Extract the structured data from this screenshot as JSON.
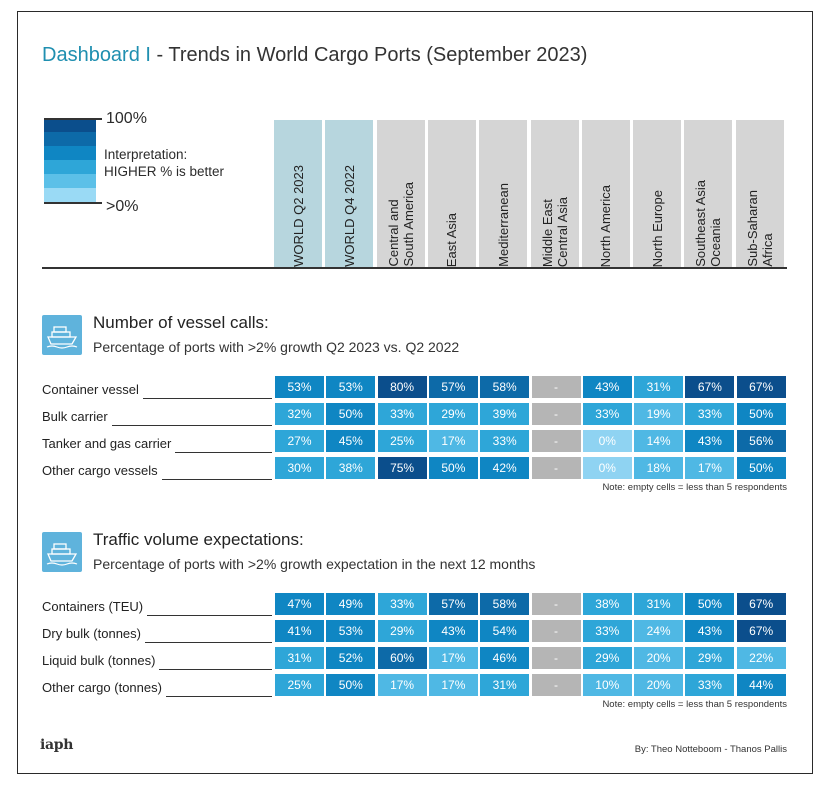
{
  "title": {
    "dashboard": "Dashboard I",
    "rest": " - Trends in World Cargo Ports (September 2023)"
  },
  "legend": {
    "top": "100%",
    "bottom": ">0%",
    "interpretation": "Interpretation:",
    "rule": "HIGHER % is better",
    "colors": [
      "#0b4e8c",
      "#0d6aa8",
      "#0f86c3",
      "#2ea6d8",
      "#5cc0e8",
      "#9adaf5"
    ]
  },
  "columns": [
    {
      "label": "WORLD  Q2  2023",
      "world": true
    },
    {
      "label": "WORLD  Q4  2022",
      "world": true
    },
    {
      "label": "Central and\nSouth America",
      "world": false
    },
    {
      "label": "East Asia",
      "world": false
    },
    {
      "label": "Mediterranean",
      "world": false
    },
    {
      "label": "Middle East\nCentral Asia",
      "world": false
    },
    {
      "label": "North America",
      "world": false
    },
    {
      "label": "North Europe",
      "world": false
    },
    {
      "label": "Southeast Asia\nOceania",
      "world": false
    },
    {
      "label": "Sub-Saharan\nAfrica",
      "world": false
    }
  ],
  "sections": [
    {
      "title": "Number of vessel calls:",
      "subtitle": "Percentage of ports with >2% growth Q2 2023 vs. Q2 2022",
      "note": "Note: empty cells = less than 5 respondents",
      "rows": [
        {
          "label": "Container vessel",
          "values": [
            "53%",
            "53%",
            "80%",
            "57%",
            "58%",
            "-",
            "43%",
            "31%",
            "67%",
            "67%"
          ]
        },
        {
          "label": "Bulk carrier",
          "values": [
            "32%",
            "50%",
            "33%",
            "29%",
            "39%",
            "-",
            "33%",
            "19%",
            "33%",
            "50%"
          ]
        },
        {
          "label": "Tanker and gas carrier",
          "values": [
            "27%",
            "45%",
            "25%",
            "17%",
            "33%",
            "-",
            "0%",
            "14%",
            "43%",
            "56%"
          ]
        },
        {
          "label": "Other cargo vessels",
          "values": [
            "30%",
            "38%",
            "75%",
            "50%",
            "42%",
            "-",
            "0%",
            "18%",
            "17%",
            "50%"
          ]
        }
      ]
    },
    {
      "title": "Traffic volume expectations:",
      "subtitle": "Percentage of ports with >2% growth expectation in the next 12 months",
      "note": "Note: empty cells = less than 5 respondents",
      "rows": [
        {
          "label": "Containers (TEU)",
          "values": [
            "47%",
            "49%",
            "33%",
            "57%",
            "58%",
            "-",
            "38%",
            "31%",
            "50%",
            "67%"
          ]
        },
        {
          "label": "Dry bulk (tonnes)",
          "values": [
            "41%",
            "53%",
            "29%",
            "43%",
            "54%",
            "-",
            "33%",
            "24%",
            "43%",
            "67%"
          ]
        },
        {
          "label": "Liquid bulk (tonnes)",
          "values": [
            "31%",
            "52%",
            "60%",
            "17%",
            "46%",
            "-",
            "29%",
            "20%",
            "29%",
            "22%"
          ]
        },
        {
          "label": "Other cargo (tonnes)",
          "values": [
            "25%",
            "50%",
            "17%",
            "17%",
            "31%",
            "-",
            "10%",
            "20%",
            "33%",
            "44%"
          ]
        }
      ]
    }
  ],
  "chart_data": {
    "type": "table",
    "title": "Dashboard I - Trends in World Cargo Ports (September 2023)",
    "categories": [
      "WORLD Q2 2023",
      "WORLD Q4 2022",
      "Central and South America",
      "East Asia",
      "Mediterranean",
      "Middle East Central Asia",
      "North America",
      "North Europe",
      "Southeast Asia Oceania",
      "Sub-Saharan Africa"
    ],
    "series": [
      {
        "name": "Container vessel",
        "values": [
          53,
          53,
          80,
          57,
          58,
          null,
          43,
          31,
          67,
          67
        ]
      },
      {
        "name": "Bulk carrier",
        "values": [
          32,
          50,
          33,
          29,
          39,
          null,
          33,
          19,
          33,
          50
        ]
      },
      {
        "name": "Tanker and gas carrier",
        "values": [
          27,
          45,
          25,
          17,
          33,
          null,
          0,
          14,
          43,
          56
        ]
      },
      {
        "name": "Other cargo vessels",
        "values": [
          30,
          38,
          75,
          50,
          42,
          null,
          0,
          18,
          17,
          50
        ]
      },
      {
        "name": "Containers (TEU)",
        "values": [
          47,
          49,
          33,
          57,
          58,
          null,
          38,
          31,
          50,
          67
        ]
      },
      {
        "name": "Dry bulk (tonnes)",
        "values": [
          41,
          53,
          29,
          43,
          54,
          null,
          33,
          24,
          43,
          67
        ]
      },
      {
        "name": "Liquid bulk (tonnes)",
        "values": [
          31,
          52,
          60,
          17,
          46,
          null,
          29,
          20,
          29,
          22
        ]
      },
      {
        "name": "Other cargo (tonnes)",
        "values": [
          25,
          50,
          17,
          17,
          31,
          null,
          10,
          20,
          33,
          44
        ]
      }
    ]
  },
  "footer": {
    "logo": "iaph",
    "byline": "By: Theo Notteboom - Thanos Pallis"
  }
}
